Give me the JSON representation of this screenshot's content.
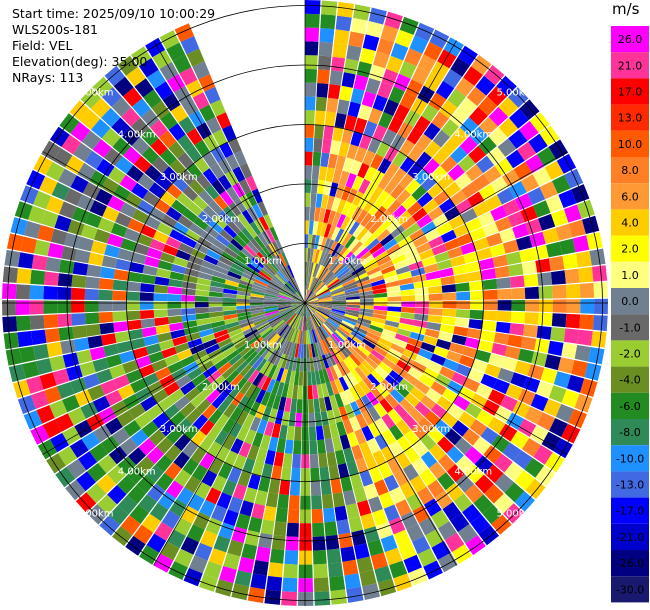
{
  "info": {
    "start_time": "Start time: 2025/09/10 10:00:29",
    "instrument": "WLS200s-181",
    "field": "Field: VEL",
    "elevation": "Elevation(deg): 35.00",
    "nrays": "NRays: 113"
  },
  "chart_data": {
    "type": "polar-ppi",
    "field": "VEL",
    "units": "m/s",
    "range_rings_km": [
      1,
      2,
      3,
      4,
      5
    ],
    "range_ring_labels": [
      "1.00km",
      "2.00km",
      "3.00km",
      "4.00km",
      "5.00km"
    ],
    "colorbar": {
      "title": "m/s",
      "ticks": [
        "26.0",
        "21.0",
        "17.0",
        "13.0",
        "10.0",
        "8.0",
        "6.0",
        "4.0",
        "2.0",
        "1.0",
        "0.0",
        "-1.0",
        "-2.0",
        "-4.0",
        "-6.0",
        "-8.0",
        "-10.0",
        "-13.0",
        "-17.0",
        "-21.0",
        "-26.0",
        "-30.0"
      ],
      "colors": [
        "#ff00ff",
        "#ff3399",
        "#ff0000",
        "#ff2a00",
        "#ff5a00",
        "#ff7f27",
        "#ff9933",
        "#ffcc00",
        "#ffff00",
        "#ffff7f",
        "#708090",
        "#696969",
        "#9acd32",
        "#6b8e23",
        "#228b22",
        "#2e8b57",
        "#1e90ff",
        "#4169e1",
        "#0000ff",
        "#0000cd",
        "#000080",
        "#191970"
      ]
    },
    "missing_sector_deg": [
      -25,
      0
    ]
  }
}
